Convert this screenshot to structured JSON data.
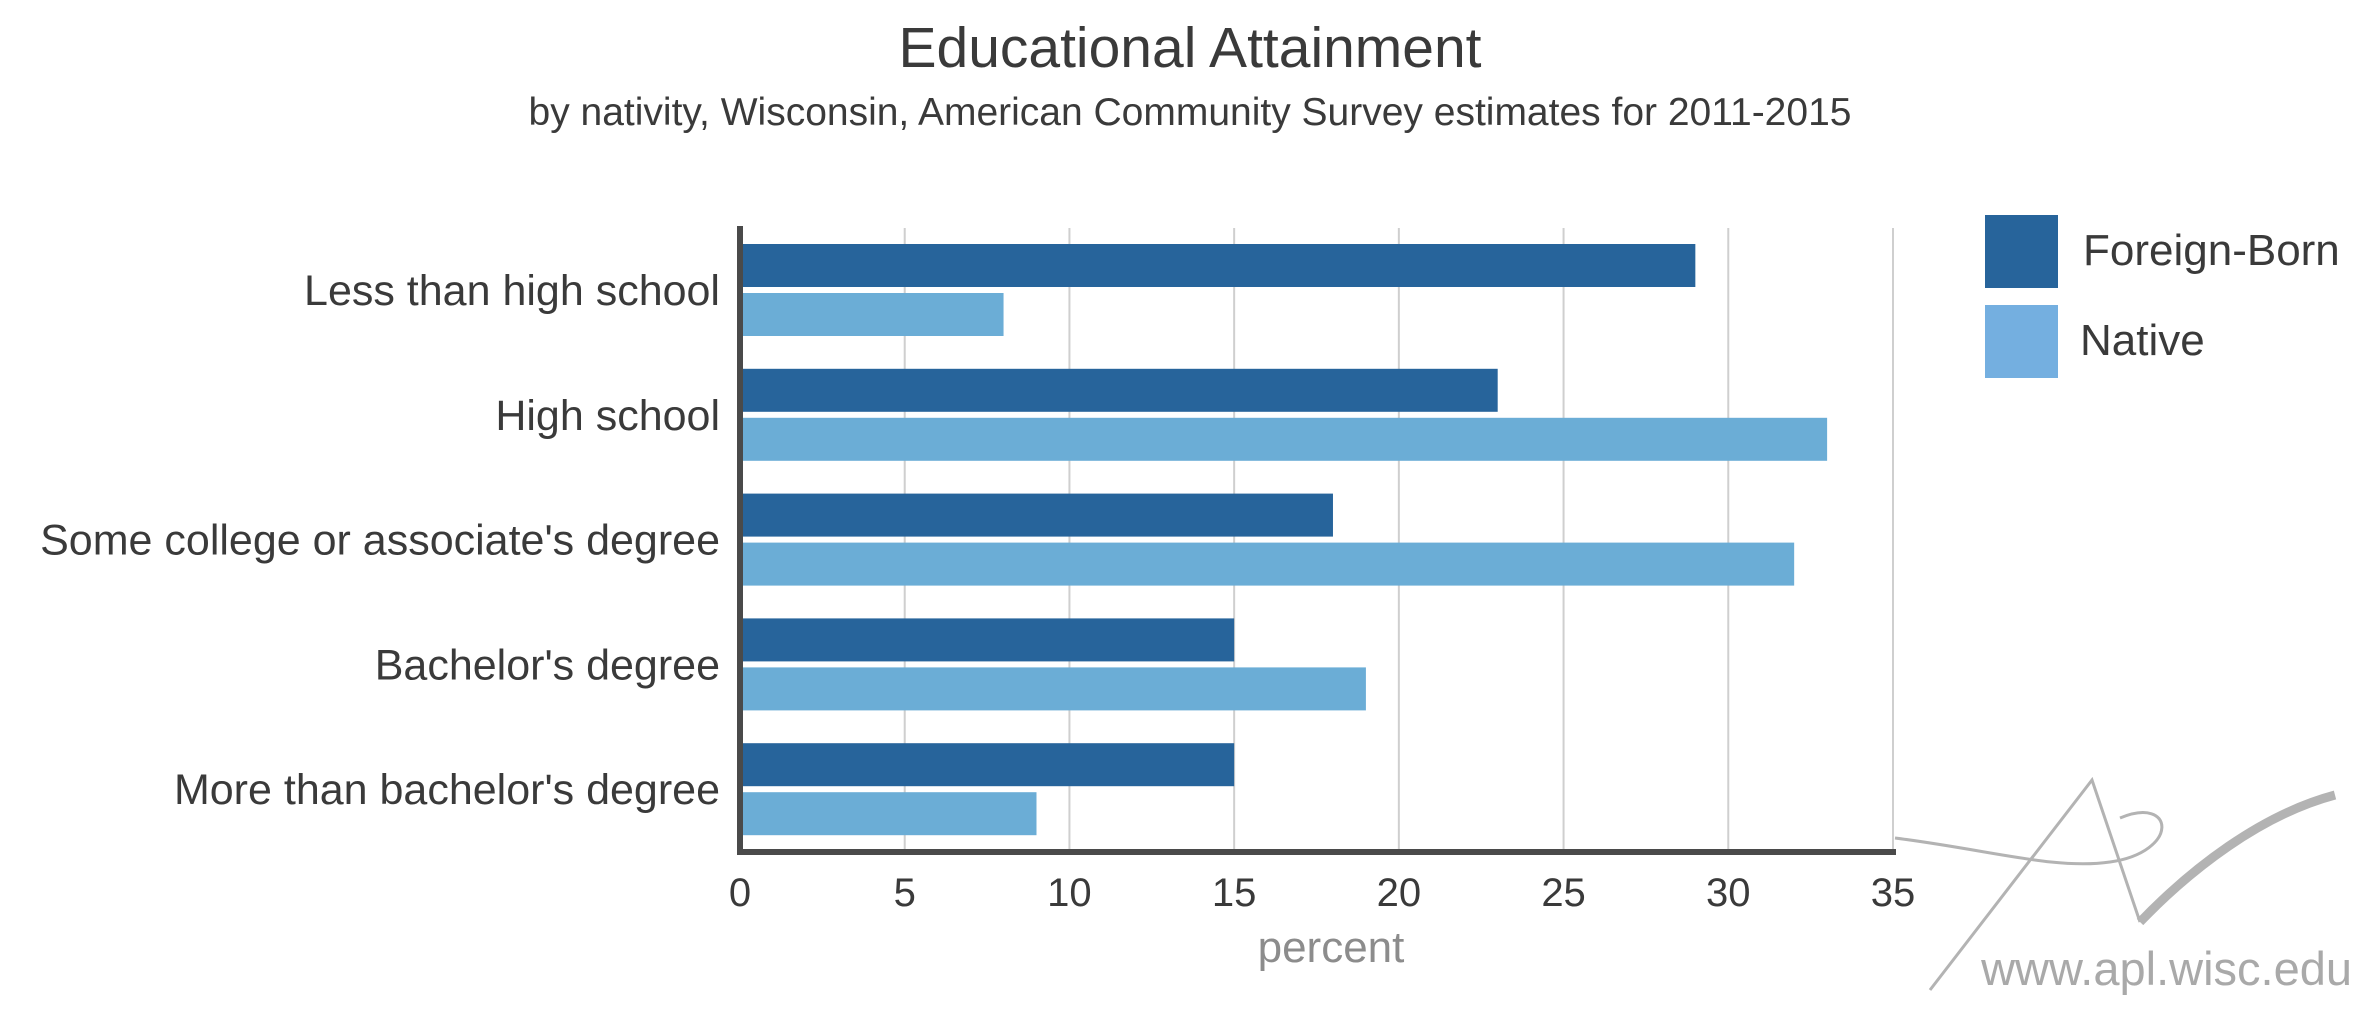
{
  "chart_data": {
    "type": "bar",
    "orientation": "horizontal",
    "title": "Educational Attainment",
    "subtitle": "by nativity, Wisconsin, American Community Survey estimates for 2011-2015",
    "xlabel": "percent",
    "ylabel": "",
    "xlim": [
      0,
      35
    ],
    "xticks": [
      "0",
      "5",
      "10",
      "15",
      "20",
      "25",
      "30",
      "35"
    ],
    "grid": true,
    "legend_position": "top-right",
    "categories": [
      "Less than high school",
      "High school",
      "Some college or associate's degree",
      "Bachelor's degree",
      "More than bachelor's degree"
    ],
    "series": [
      {
        "name": "Foreign-Born",
        "color": "#27649b",
        "values": [
          29,
          23,
          18,
          15,
          15
        ]
      },
      {
        "name": "Native",
        "color": "#6badd6",
        "values": [
          8,
          33,
          32,
          19,
          9
        ]
      }
    ]
  },
  "watermark": {
    "text": "www.apl.wisc.edu",
    "logo_icon": "apl-logo-icon"
  }
}
